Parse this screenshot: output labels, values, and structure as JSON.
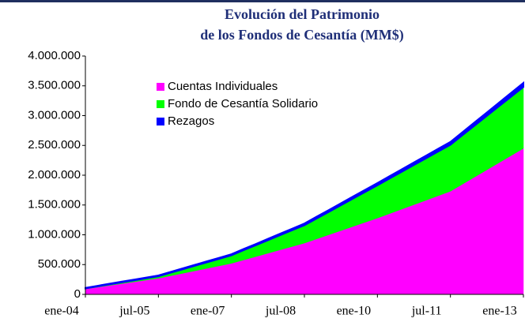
{
  "chart_data": {
    "type": "stacked_area",
    "title": [
      "Evolución del Patrimonio",
      "de los Fondos de Cesantía (MM$)"
    ],
    "categories": [
      "ene-04",
      null,
      null,
      null,
      null,
      null,
      "jul-05",
      null,
      null,
      null,
      null,
      null,
      "ene-07",
      null,
      null,
      null,
      null,
      null,
      "jul-08",
      null,
      null,
      null,
      null,
      null,
      "ene-10",
      null,
      null,
      null,
      null,
      null,
      "jul-11",
      null,
      null,
      null,
      null,
      null,
      "ene-13"
    ],
    "series": [
      {
        "name": "Cuentas Individuales",
        "color": "#ff00ff",
        "values": [
          90000,
          120000,
          150000,
          180000,
          210000,
          240000,
          270000,
          312000,
          353000,
          395000,
          437000,
          478000,
          520000,
          577000,
          633000,
          690000,
          747000,
          803000,
          860000,
          930000,
          1000000,
          1070000,
          1140000,
          1210000,
          1280000,
          1355000,
          1430000,
          1505000,
          1580000,
          1655000,
          1730000,
          1850000,
          1970000,
          2090000,
          2210000,
          2330000,
          2450000
        ]
      },
      {
        "name": "Fondo de Cesantía Solidario",
        "color": "#00ff00",
        "values": [
          10000,
          14000,
          18000,
          22000,
          25000,
          29000,
          33000,
          50000,
          67000,
          84000,
          101000,
          118000,
          135000,
          163000,
          190000,
          218000,
          245000,
          273000,
          300000,
          342000,
          383000,
          425000,
          467000,
          508000,
          550000,
          588000,
          627000,
          665000,
          703000,
          742000,
          780000,
          822000,
          863000,
          905000,
          947000,
          988000,
          1030000
        ]
      },
      {
        "name": "Rezagos",
        "color": "#0000ff",
        "values": [
          10000,
          11000,
          12000,
          13000,
          13000,
          14000,
          15000,
          16000,
          17000,
          18000,
          18000,
          19000,
          20000,
          22000,
          23000,
          25000,
          27000,
          28000,
          30000,
          32000,
          33000,
          35000,
          37000,
          38000,
          40000,
          42000,
          43000,
          45000,
          47000,
          48000,
          50000,
          53000,
          57000,
          60000,
          63000,
          67000,
          70000
        ]
      }
    ],
    "ylim": [
      0,
      4000000
    ],
    "yticks": [
      0,
      {
        "value": 500000,
        "label": "500.000"
      },
      {
        "value": 1000000,
        "label": "1.000.000"
      },
      {
        "value": 1500000,
        "label": "1.500.000"
      },
      {
        "value": 2000000,
        "label": "2.000.000"
      },
      {
        "value": 2500000,
        "label": "2.500.000"
      },
      {
        "value": 3000000,
        "label": "3.000.000"
      },
      {
        "value": 3500000,
        "label": "3.500.000"
      },
      {
        "value": 4000000,
        "label": "4.000.000"
      }
    ],
    "grid": false,
    "legend": "upper left"
  }
}
